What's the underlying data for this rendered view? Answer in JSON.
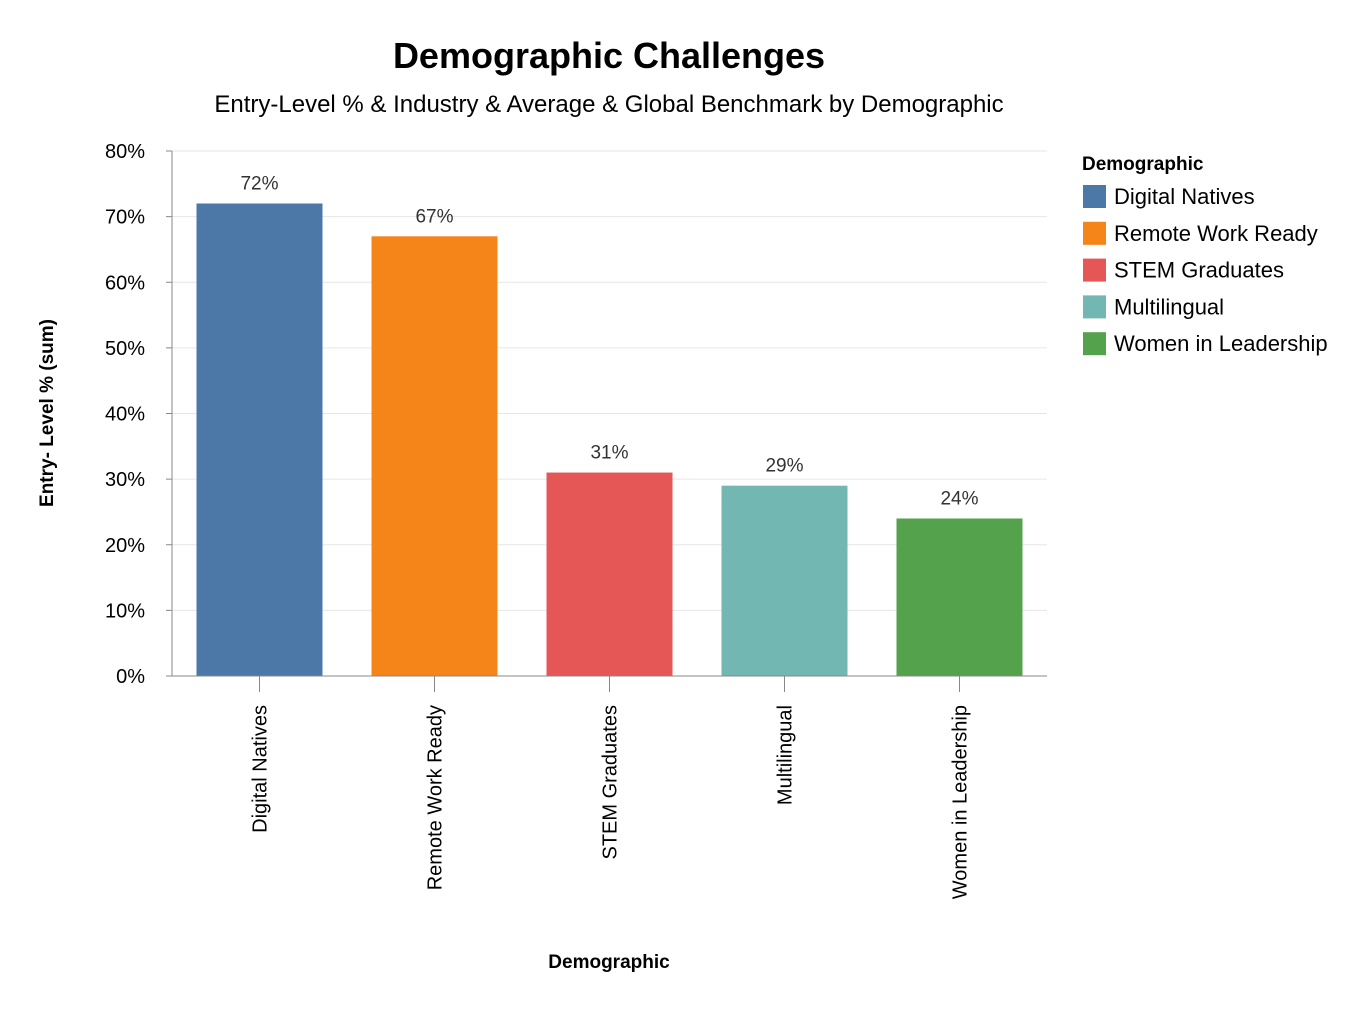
{
  "chart_data": {
    "type": "bar",
    "title": "Demographic Challenges",
    "subtitle": "Entry-Level % & Industry & Average & Global Benchmark by Demographic",
    "xlabel": "Demographic",
    "ylabel": "Entry- Level % (sum)",
    "categories": [
      "Digital Natives",
      "Remote Work Ready",
      "STEM Graduates",
      "Multilingual",
      "Women in Leadership"
    ],
    "values": [
      72,
      67,
      31,
      29,
      24
    ],
    "data_labels": [
      "72%",
      "67%",
      "31%",
      "29%",
      "24%"
    ],
    "colors": [
      "#4c78a8",
      "#f58518",
      "#e45756",
      "#72b7b2",
      "#54a24b"
    ],
    "ylim": [
      0,
      80
    ],
    "yticks": [
      0,
      10,
      20,
      30,
      40,
      50,
      60,
      70,
      80
    ],
    "ytick_labels": [
      "0%",
      "10%",
      "20%",
      "30%",
      "40%",
      "50%",
      "60%",
      "70%",
      "80%"
    ],
    "grid": true,
    "legend": {
      "title": "Demographic",
      "placement": "right",
      "entries": [
        "Digital Natives",
        "Remote Work Ready",
        "STEM Graduates",
        "Multilingual",
        "Women in Leadership"
      ]
    }
  }
}
